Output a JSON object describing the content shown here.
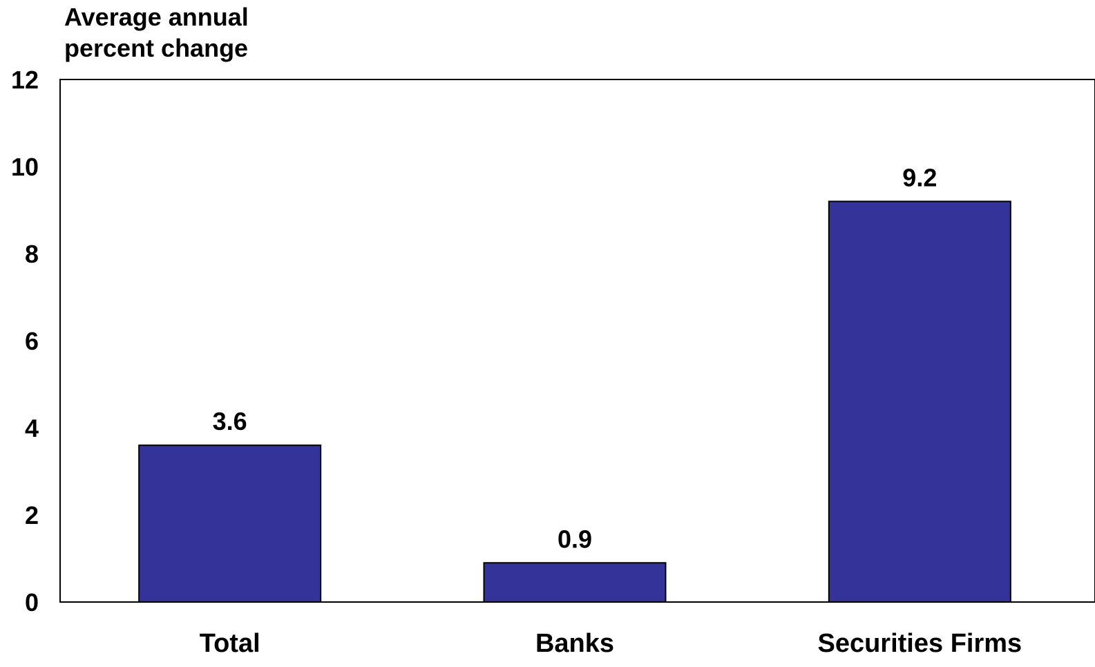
{
  "chart_data": {
    "type": "bar",
    "categories": [
      "Total",
      "Banks",
      "Securities Firms"
    ],
    "values": [
      3.6,
      0.9,
      9.2
    ],
    "data_labels": [
      "3.6",
      "0.9",
      "9.2"
    ],
    "title": "",
    "xlabel": "",
    "ylabel_lines": [
      "Average annual",
      "percent change"
    ],
    "ylim": [
      0,
      12
    ],
    "yticks": [
      0,
      2,
      4,
      6,
      8,
      10,
      12
    ],
    "ytick_labels": [
      "0",
      "2",
      "4",
      "6",
      "8",
      "10",
      "12"
    ],
    "grid": false,
    "legend": "none",
    "bar_color": "#333399",
    "bar_edge_color": "#000000"
  }
}
